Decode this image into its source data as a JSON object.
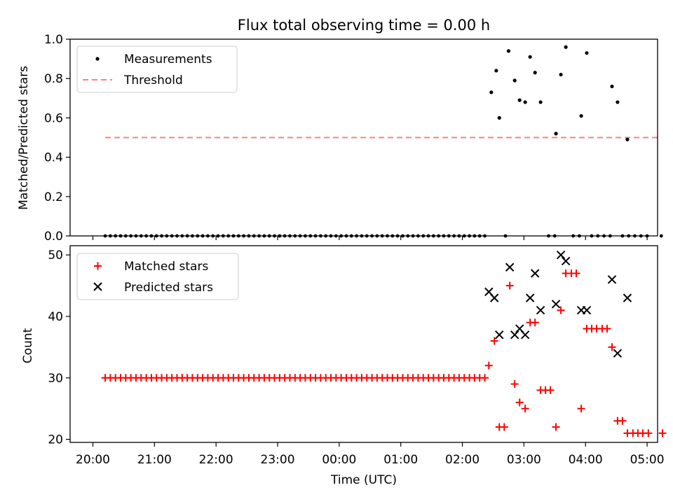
{
  "chart_data": [
    {
      "type": "scatter",
      "title": "Flux total observing time = 0.00 h",
      "xlabel": "",
      "ylabel": "Matched/Predicted stars",
      "xlim_hours": [
        19.63,
        29.17
      ],
      "ylim": [
        0,
        1.0
      ],
      "yticks": [
        0.0,
        0.2,
        0.4,
        0.6,
        0.8,
        1.0
      ],
      "ytick_labels": [
        "0.0",
        "0.2",
        "0.4",
        "0.6",
        "0.8",
        "1.0"
      ],
      "legend_position": "top-left",
      "series": [
        {
          "name": "Measurements",
          "kind": "points",
          "color": "#000000",
          "zero_x_start": 20.2,
          "zero_x_end": 26.4,
          "zero_x_step": 0.0833,
          "zero_x_extra": [
            26.7,
            27.4,
            27.5,
            27.8,
            27.9,
            28.1,
            28.2,
            28.3,
            28.4,
            28.6,
            28.7,
            28.8,
            28.9,
            29.0,
            29.23
          ],
          "points": [
            [
              26.47,
              0.73
            ],
            [
              26.55,
              0.84
            ],
            [
              26.6,
              0.6
            ],
            [
              26.75,
              0.94
            ],
            [
              26.85,
              0.79
            ],
            [
              26.93,
              0.69
            ],
            [
              27.02,
              0.68
            ],
            [
              27.1,
              0.91
            ],
            [
              27.18,
              0.83
            ],
            [
              27.27,
              0.68
            ],
            [
              27.52,
              0.52
            ],
            [
              27.6,
              0.82
            ],
            [
              27.68,
              0.96
            ],
            [
              27.93,
              0.61
            ],
            [
              28.02,
              0.93
            ],
            [
              28.43,
              0.76
            ],
            [
              28.52,
              0.68
            ],
            [
              28.68,
              0.49
            ]
          ]
        },
        {
          "name": "Threshold",
          "kind": "dashed-line",
          "color": "#ff7f7f",
          "x": [
            20.2,
            29.2
          ],
          "y": [
            0.5,
            0.5
          ]
        }
      ]
    },
    {
      "type": "scatter",
      "title": "",
      "xlabel": "Time (UTC)",
      "ylabel": "Count",
      "xlim_hours": [
        19.63,
        29.17
      ],
      "ylim": [
        19.5,
        51.5
      ],
      "yticks": [
        20,
        30,
        40,
        50
      ],
      "ytick_labels": [
        "20",
        "30",
        "40",
        "50"
      ],
      "xticks_hours": [
        20,
        21,
        22,
        23,
        24,
        25,
        26,
        27,
        28,
        29
      ],
      "xtick_labels": [
        "20:00",
        "21:00",
        "22:00",
        "23:00",
        "00:00",
        "01:00",
        "02:00",
        "03:00",
        "04:00",
        "05:00"
      ],
      "legend_position": "top-left",
      "series": [
        {
          "name": "Matched stars",
          "marker": "+",
          "color": "#ff0000",
          "flat_x_start": 20.2,
          "flat_x_end": 26.37,
          "flat_x_step": 0.0833,
          "flat_y": 30,
          "points": [
            [
              26.43,
              32
            ],
            [
              26.52,
              36
            ],
            [
              26.6,
              22
            ],
            [
              26.68,
              22
            ],
            [
              26.77,
              45
            ],
            [
              26.85,
              29
            ],
            [
              26.93,
              26
            ],
            [
              27.02,
              25
            ],
            [
              27.1,
              39
            ],
            [
              27.18,
              39
            ],
            [
              27.27,
              28
            ],
            [
              27.35,
              28
            ],
            [
              27.43,
              28
            ],
            [
              27.52,
              22
            ],
            [
              27.6,
              41
            ],
            [
              27.68,
              47
            ],
            [
              27.77,
              47
            ],
            [
              27.85,
              47
            ],
            [
              27.93,
              25
            ],
            [
              28.02,
              38
            ],
            [
              28.1,
              38
            ],
            [
              28.18,
              38
            ],
            [
              28.27,
              38
            ],
            [
              28.35,
              38
            ],
            [
              28.43,
              35
            ],
            [
              28.52,
              23
            ],
            [
              28.6,
              23
            ],
            [
              28.68,
              21
            ],
            [
              28.77,
              21
            ],
            [
              28.85,
              21
            ],
            [
              28.93,
              21
            ],
            [
              29.02,
              21
            ],
            [
              29.25,
              21
            ]
          ]
        },
        {
          "name": "Predicted stars",
          "marker": "x",
          "color": "#000000",
          "points": [
            [
              26.43,
              44
            ],
            [
              26.52,
              43
            ],
            [
              26.6,
              37
            ],
            [
              26.77,
              48
            ],
            [
              26.85,
              37
            ],
            [
              26.93,
              38
            ],
            [
              27.02,
              37
            ],
            [
              27.1,
              43
            ],
            [
              27.18,
              47
            ],
            [
              27.27,
              41
            ],
            [
              27.52,
              42
            ],
            [
              27.6,
              50
            ],
            [
              27.68,
              49
            ],
            [
              27.93,
              41
            ],
            [
              28.02,
              41
            ],
            [
              28.43,
              46
            ],
            [
              28.52,
              34
            ],
            [
              28.68,
              43
            ]
          ]
        }
      ]
    }
  ]
}
